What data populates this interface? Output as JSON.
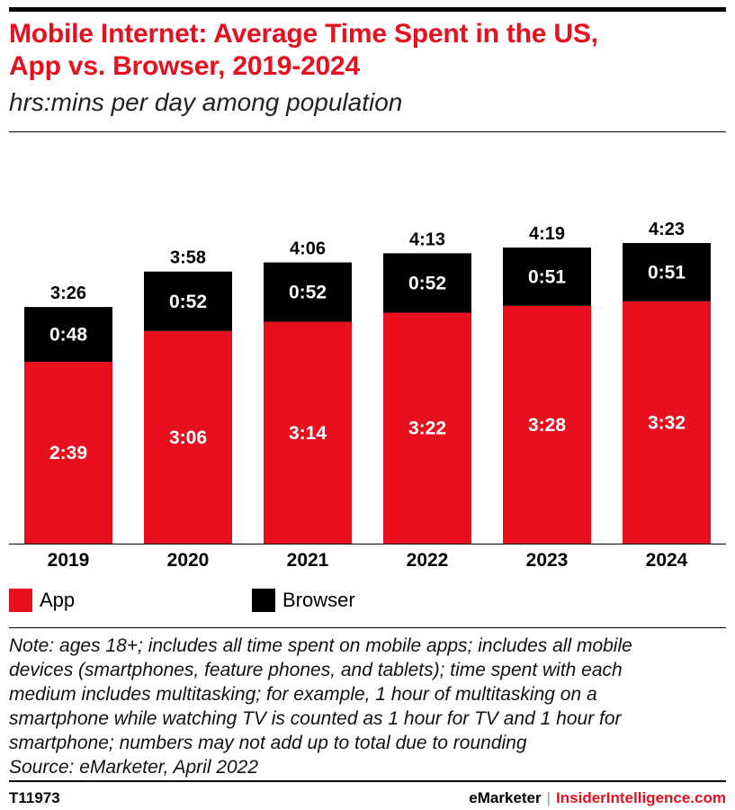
{
  "header": {
    "title_line1": "Mobile Internet: Average Time Spent in the US,",
    "title_line2": "App vs. Browser, 2019-2024",
    "subtitle": "hrs:mins per day among population"
  },
  "colors": {
    "app": "#e8101f",
    "browser": "#000000"
  },
  "chart_data": {
    "type": "bar",
    "stacked": true,
    "title": "Mobile Internet: Average Time Spent in the US, App vs. Browser, 2019-2024",
    "ylabel": "hrs:mins per day among population",
    "categories": [
      "2019",
      "2020",
      "2021",
      "2022",
      "2023",
      "2024"
    ],
    "series": [
      {
        "name": "App",
        "values": [
          159,
          186,
          194,
          202,
          208,
          212
        ],
        "labels": [
          "2:39",
          "3:06",
          "3:14",
          "3:22",
          "3:28",
          "3:32"
        ]
      },
      {
        "name": "Browser",
        "values": [
          48,
          52,
          52,
          52,
          51,
          51
        ],
        "labels": [
          "0:48",
          "0:52",
          "0:52",
          "0:52",
          "0:51",
          "0:51"
        ]
      }
    ],
    "totals": [
      206,
      238,
      246,
      253,
      259,
      263
    ],
    "total_labels": [
      "3:26",
      "3:58",
      "4:06",
      "4:13",
      "4:19",
      "4:23"
    ],
    "ylim": [
      0,
      300
    ],
    "grid": false
  },
  "legend": {
    "app_label": "App",
    "browser_label": "Browser"
  },
  "note": {
    "lines": [
      "Note: ages 18+; includes all time spent on mobile apps; includes all mobile",
      "devices (smartphones, feature phones, and tablets); time spent with each",
      "medium includes multitasking; for example, 1 hour of multitasking on a",
      "smartphone while watching TV is counted as 1 hour for TV and 1 hour for",
      "smartphone; numbers may not add up to total due to rounding"
    ],
    "source": "Source: eMarketer, April 2022"
  },
  "footer": {
    "code": "T11973",
    "brand": "eMarketer",
    "separator": "|",
    "brand2": "InsiderIntelligence.com"
  }
}
